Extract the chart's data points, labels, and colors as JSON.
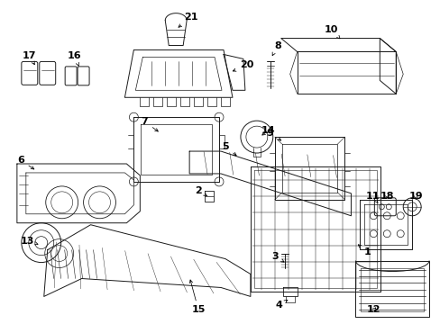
{
  "background_color": "#ffffff",
  "line_color": "#1a1a1a",
  "text_color": "#000000",
  "fig_width": 4.89,
  "fig_height": 3.6,
  "dpi": 100,
  "font_size": 8,
  "arrow_lw": 0.5
}
